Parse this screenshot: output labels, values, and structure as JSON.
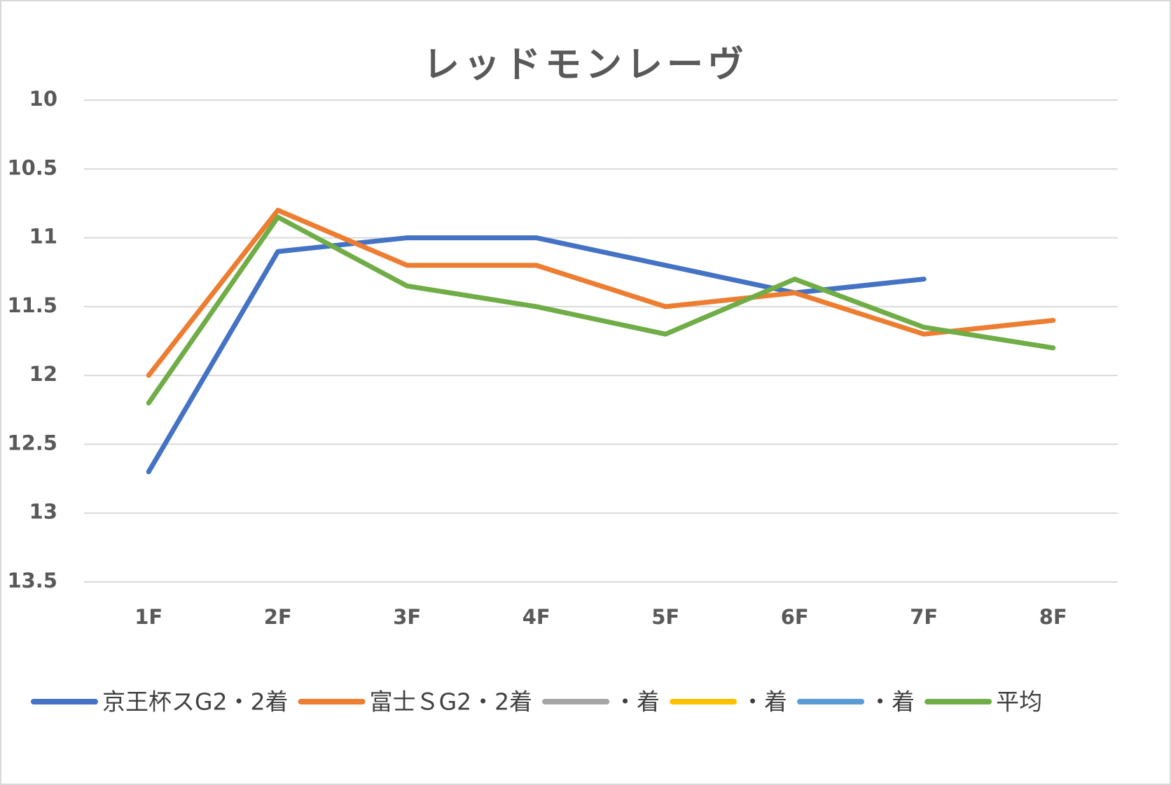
{
  "chart_data": {
    "type": "line",
    "title": "レッドモンレーヴ",
    "categories": [
      "1F",
      "2F",
      "3F",
      "4F",
      "5F",
      "6F",
      "7F",
      "8F"
    ],
    "series": [
      {
        "name": "京王杯スG2・2着",
        "color": "#4472c4",
        "values": [
          12.7,
          11.1,
          11.0,
          11.0,
          11.2,
          11.4,
          11.3,
          null
        ]
      },
      {
        "name": "富士ＳG2・2着",
        "color": "#ed7d31",
        "values": [
          12.0,
          10.8,
          11.2,
          11.2,
          11.5,
          11.4,
          11.7,
          11.6
        ]
      },
      {
        "name": "・着",
        "color": "#a5a5a5",
        "values": [
          null,
          null,
          null,
          null,
          null,
          null,
          null,
          null
        ]
      },
      {
        "name": "・着",
        "color": "#ffc000",
        "values": [
          null,
          null,
          null,
          null,
          null,
          null,
          null,
          null
        ]
      },
      {
        "name": "・着",
        "color": "#5b9bd5",
        "values": [
          null,
          null,
          null,
          null,
          null,
          null,
          null,
          null
        ]
      },
      {
        "name": "平均",
        "color": "#70ad47",
        "values": [
          12.2,
          10.85,
          11.35,
          11.5,
          11.7,
          11.3,
          11.65,
          11.8
        ]
      }
    ],
    "ylim": [
      10,
      13.5
    ],
    "y_reversed": true,
    "yticks": [
      10,
      10.5,
      11,
      11.5,
      12,
      12.5,
      13,
      13.5
    ],
    "grid": true,
    "legend": "bottom"
  }
}
